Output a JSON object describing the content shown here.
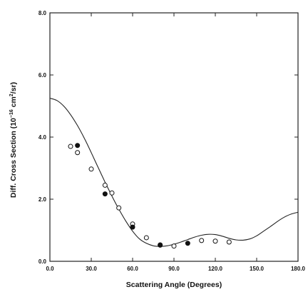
{
  "chart_data": {
    "type": "scatter",
    "xlabel": "Scattering Angle (Degrees)",
    "ylabel_main": "Diff. Cross Section (10",
    "ylabel_exp": "−16",
    "ylabel_unit": " cm",
    "ylabel_unit_exp": "2",
    "ylabel_end": "/sr)",
    "xlim": [
      0,
      180
    ],
    "ylim": [
      0,
      8
    ],
    "x_ticks": [
      0,
      30,
      60,
      90,
      120,
      150,
      180
    ],
    "x_tick_labels": [
      "0.0",
      "30.0",
      "60.0",
      "90.0",
      "120.0",
      "150.0",
      "180.0"
    ],
    "y_ticks": [
      0,
      2,
      4,
      6,
      8
    ],
    "y_tick_labels": [
      "0.0",
      "2.0",
      "4.0",
      "6.0",
      "8.0"
    ],
    "grid": false,
    "series": [
      {
        "kind": "line",
        "x": [
          0,
          5,
          10,
          15,
          20,
          25,
          30,
          35,
          40,
          45,
          50,
          55,
          60,
          65,
          70,
          75,
          80,
          85,
          90,
          95,
          100,
          105,
          110,
          115,
          120,
          125,
          130,
          135,
          140,
          145,
          150,
          155,
          160,
          165,
          170,
          175,
          180
        ],
        "y": [
          5.25,
          5.18,
          5.0,
          4.72,
          4.37,
          3.96,
          3.5,
          3.02,
          2.55,
          2.1,
          1.68,
          1.3,
          0.97,
          0.72,
          0.58,
          0.5,
          0.48,
          0.5,
          0.55,
          0.62,
          0.7,
          0.78,
          0.84,
          0.87,
          0.86,
          0.81,
          0.74,
          0.69,
          0.68,
          0.72,
          0.82,
          0.97,
          1.12,
          1.28,
          1.42,
          1.52,
          1.58
        ]
      },
      {
        "kind": "points",
        "marker": "open-circle",
        "x": [
          15,
          20,
          30,
          40,
          45,
          50,
          60,
          70,
          80,
          90,
          110,
          120,
          130
        ],
        "y": [
          3.7,
          3.5,
          2.97,
          2.45,
          2.2,
          1.72,
          1.2,
          0.76,
          0.52,
          0.49,
          0.67,
          0.65,
          0.62
        ]
      },
      {
        "kind": "points",
        "marker": "filled-circle",
        "x": [
          20,
          40,
          60,
          80,
          100
        ],
        "y": [
          3.73,
          2.17,
          1.1,
          0.53,
          0.58
        ]
      }
    ]
  }
}
